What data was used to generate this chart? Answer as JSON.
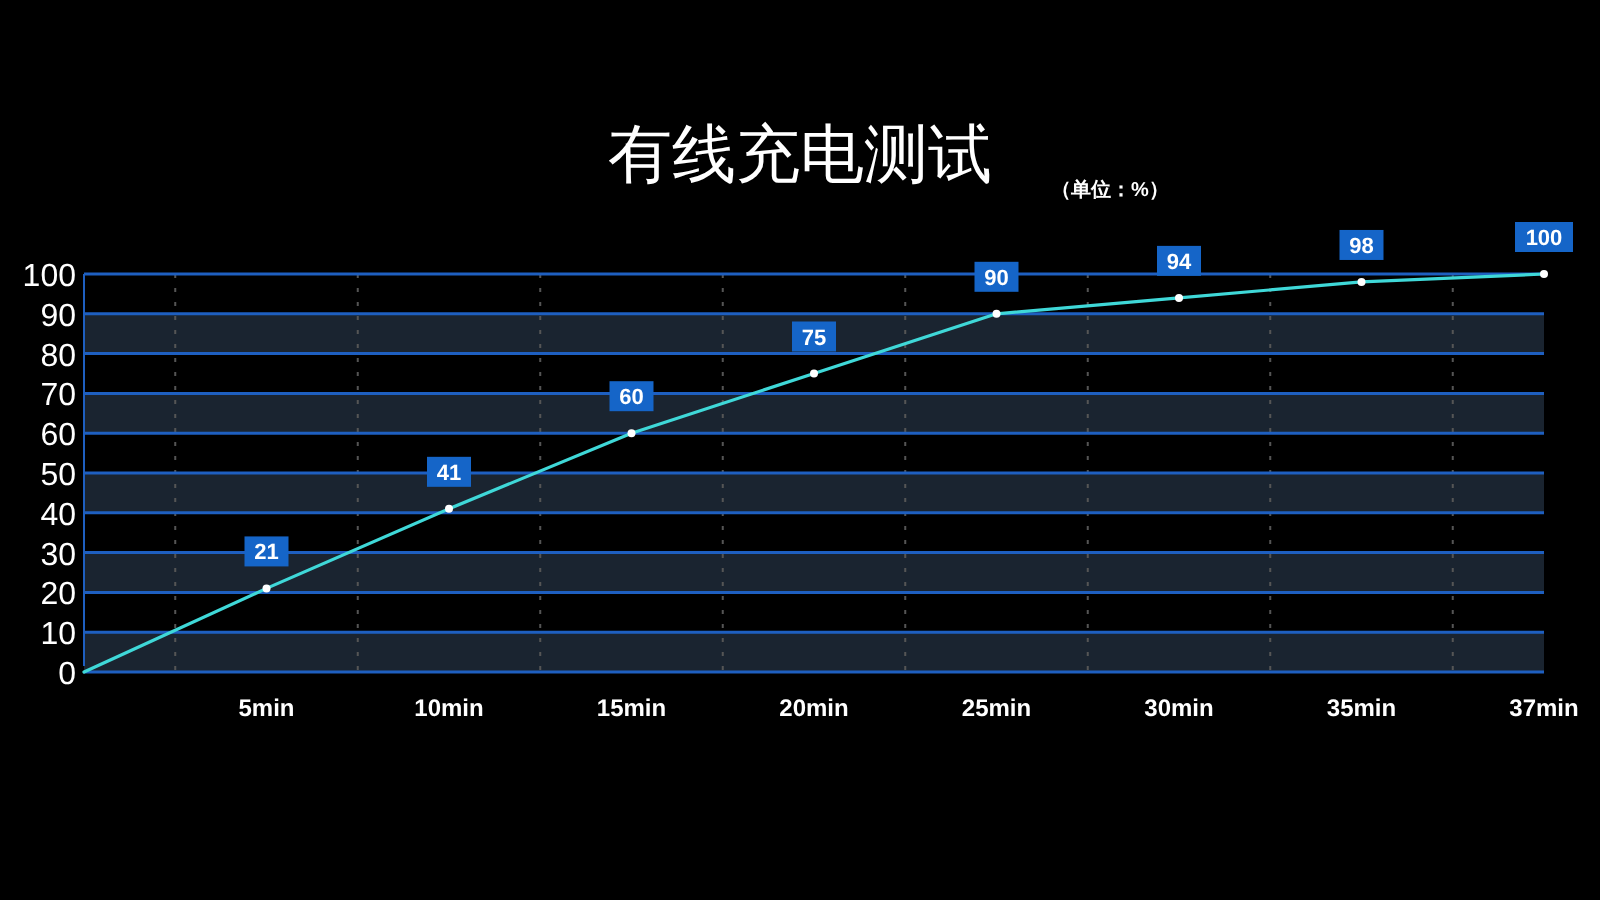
{
  "chart_data": {
    "type": "line",
    "title": "有线充电测试",
    "subtitle": "（单位：%）",
    "categories": [
      null,
      "5min",
      "10min",
      "15min",
      "20min",
      "25min",
      "30min",
      "35min",
      "37min"
    ],
    "series": [
      {
        "color": "#3fd8d8",
        "values": [
          0,
          21,
          41,
          60,
          75,
          90,
          94,
          98,
          100
        ],
        "value_labels": [
          null,
          "21",
          "41",
          "60",
          "75",
          "90",
          "94",
          "98",
          "100"
        ]
      }
    ],
    "ylim": [
      0,
      100
    ],
    "yticks": [
      0,
      10,
      20,
      30,
      40,
      50,
      60,
      70,
      80,
      90,
      100
    ],
    "bands": [
      {
        "axis": "y",
        "from": 0,
        "to": 10,
        "color": "#1a2430"
      },
      {
        "axis": "y",
        "from": 20,
        "to": 30,
        "color": "#1a2430"
      },
      {
        "axis": "y",
        "from": 40,
        "to": 50,
        "color": "#1a2430"
      },
      {
        "axis": "y",
        "from": 60,
        "to": 70,
        "color": "#1a2430"
      },
      {
        "axis": "y",
        "from": 80,
        "to": 90,
        "color": "#1a2430"
      }
    ],
    "grid": true,
    "marker": "circle"
  }
}
